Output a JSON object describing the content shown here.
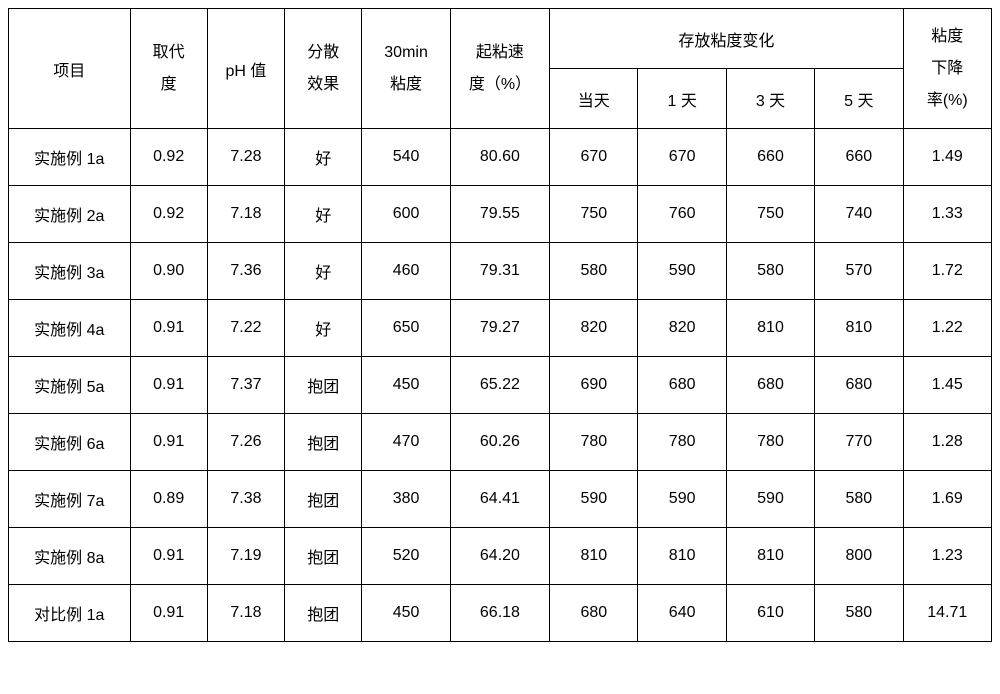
{
  "table": {
    "headers": {
      "item": "项目",
      "substitution": "取代\n度",
      "ph": "pH 值",
      "dispersion": "分散\n效果",
      "viscosity30min": "30min\n粘度",
      "viscosityRate": "起粘速\n度（%）",
      "storageChange": "存放粘度变化",
      "day0": "当天",
      "day1": "1 天",
      "day3": "3 天",
      "day5": "5 天",
      "dropRate": "粘度\n下降\n率(%)"
    },
    "rows": [
      {
        "item": "实施例 1a",
        "sub": "0.92",
        "ph": "7.28",
        "disp": "好",
        "v30": "540",
        "rate": "80.60",
        "d0": "670",
        "d1": "670",
        "d3": "660",
        "d5": "660",
        "drop": "1.49"
      },
      {
        "item": "实施例 2a",
        "sub": "0.92",
        "ph": "7.18",
        "disp": "好",
        "v30": "600",
        "rate": "79.55",
        "d0": "750",
        "d1": "760",
        "d3": "750",
        "d5": "740",
        "drop": "1.33"
      },
      {
        "item": "实施例 3a",
        "sub": "0.90",
        "ph": "7.36",
        "disp": "好",
        "v30": "460",
        "rate": "79.31",
        "d0": "580",
        "d1": "590",
        "d3": "580",
        "d5": "570",
        "drop": "1.72"
      },
      {
        "item": "实施例 4a",
        "sub": "0.91",
        "ph": "7.22",
        "disp": "好",
        "v30": "650",
        "rate": "79.27",
        "d0": "820",
        "d1": "820",
        "d3": "810",
        "d5": "810",
        "drop": "1.22"
      },
      {
        "item": "实施例 5a",
        "sub": "0.91",
        "ph": "7.37",
        "disp": "抱团",
        "v30": "450",
        "rate": "65.22",
        "d0": "690",
        "d1": "680",
        "d3": "680",
        "d5": "680",
        "drop": "1.45"
      },
      {
        "item": "实施例 6a",
        "sub": "0.91",
        "ph": "7.26",
        "disp": "抱团",
        "v30": "470",
        "rate": "60.26",
        "d0": "780",
        "d1": "780",
        "d3": "780",
        "d5": "770",
        "drop": "1.28"
      },
      {
        "item": "实施例 7a",
        "sub": "0.89",
        "ph": "7.38",
        "disp": "抱团",
        "v30": "380",
        "rate": "64.41",
        "d0": "590",
        "d1": "590",
        "d3": "590",
        "d5": "580",
        "drop": "1.69"
      },
      {
        "item": "实施例 8a",
        "sub": "0.91",
        "ph": "7.19",
        "disp": "抱团",
        "v30": "520",
        "rate": "64.20",
        "d0": "810",
        "d1": "810",
        "d3": "810",
        "d5": "800",
        "drop": "1.23"
      },
      {
        "item": "对比例 1a",
        "sub": "0.91",
        "ph": "7.18",
        "disp": "抱团",
        "v30": "450",
        "rate": "66.18",
        "d0": "680",
        "d1": "640",
        "d3": "610",
        "d5": "580",
        "drop": "14.71"
      }
    ],
    "styling": {
      "border_color": "#000000",
      "background": "#ffffff",
      "text_color": "#000000",
      "font_size": 16,
      "header_row_height": 60,
      "data_row_height": 57,
      "column_widths_pct": {
        "item": 11.0,
        "sub": 7.0,
        "ph": 7.0,
        "disp": 7.0,
        "v30": 8.0,
        "rate": 9.0,
        "d0": 8.0,
        "d1": 8.0,
        "d3": 8.0,
        "d5": 8.0,
        "drop": 8.0
      }
    }
  }
}
